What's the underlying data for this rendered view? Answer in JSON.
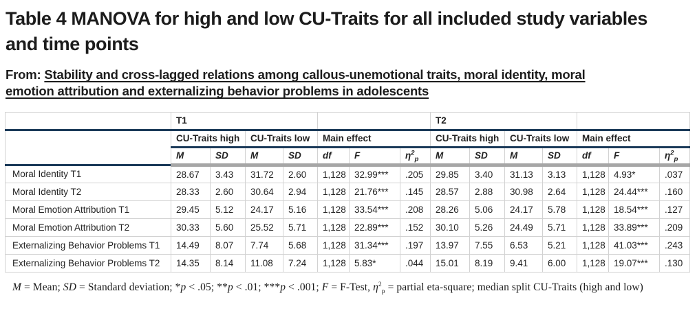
{
  "page": {
    "title": "Table 4 MANOVA for high and low CU-Traits for all included study variables and time points",
    "source_prefix": "From:",
    "source_link": "Stability and cross-lagged relations among callous-unemotional traits, moral identity, moral emotion attribution and externalizing behavior problems in adolescents"
  },
  "colors": {
    "accent_rule": "#1b3a59",
    "header_bar": "#a6a6a6",
    "cell_border": "#d2d2d2",
    "text": "#242424"
  },
  "table": {
    "time_groups": [
      "T1",
      "T2"
    ],
    "subgroups": [
      "CU-Traits high",
      "CU-Traits low",
      "Main effect"
    ],
    "stat_headers": {
      "m": "M",
      "sd": "SD",
      "df": "df",
      "f": "F",
      "eta_base": "η",
      "eta_sup": "2",
      "eta_sub": "p"
    },
    "rows": [
      {
        "label": "Moral Identity T1",
        "values": [
          "28.67",
          "3.43",
          "31.72",
          "2.60",
          "1,128",
          "32.99***",
          ".205",
          "29.85",
          "3.40",
          "31.13",
          "3.13",
          "1,128",
          "4.93*",
          ".037"
        ]
      },
      {
        "label": "Moral Identity T2",
        "values": [
          "28.33",
          "2.60",
          "30.64",
          "2.94",
          "1,128",
          "21.76***",
          ".145",
          "28.57",
          "2.88",
          "30.98",
          "2.64",
          "1,128",
          "24.44***",
          ".160"
        ]
      },
      {
        "label": "Moral Emotion Attribution T1",
        "values": [
          "29.45",
          "5.12",
          "24.17",
          "5.16",
          "1,128",
          "33.54***",
          ".208",
          "28.26",
          "5.06",
          "24.17",
          "5.78",
          "1,128",
          "18.54***",
          ".127"
        ]
      },
      {
        "label": "Moral Emotion Attribution T2",
        "values": [
          "30.33",
          "5.60",
          "25.52",
          "5.71",
          "1,128",
          "22.89***",
          ".152",
          "30.10",
          "5.26",
          "24.49",
          "5.71",
          "1,128",
          "33.89***",
          ".209"
        ]
      },
      {
        "label": "Externalizing Behavior Problems T1",
        "values": [
          "14.49",
          "8.07",
          "7.74",
          "5.68",
          "1,128",
          "31.34***",
          ".197",
          "13.97",
          "7.55",
          "6.53",
          "5.21",
          "1,128",
          "41.03***",
          ".243"
        ]
      },
      {
        "label": "Externalizing Behavior Problems T2",
        "values": [
          "14.35",
          "8.14",
          "11.08",
          "7.24",
          "1,128",
          "5.83*",
          ".044",
          "15.01",
          "8.19",
          "9.41",
          "6.00",
          "1,128",
          "19.07***",
          ".130"
        ]
      }
    ]
  },
  "footnote": {
    "segments": [
      {
        "t": "M",
        "i": true
      },
      {
        "t": " = Mean; "
      },
      {
        "t": "SD",
        "i": true
      },
      {
        "t": " = Standard deviation; *"
      },
      {
        "t": "p",
        "i": true
      },
      {
        "t": " < .05; **"
      },
      {
        "t": "p",
        "i": true
      },
      {
        "t": " < .01; ***"
      },
      {
        "t": "p",
        "i": true
      },
      {
        "t": " < .001; "
      },
      {
        "t": "F",
        "i": true
      },
      {
        "t": " = F-Test, "
      },
      {
        "t": "η",
        "i": true,
        "sup": "2",
        "sub": "p"
      },
      {
        "t": " = partial eta-square; median split CU-Traits (high and low)"
      }
    ]
  }
}
